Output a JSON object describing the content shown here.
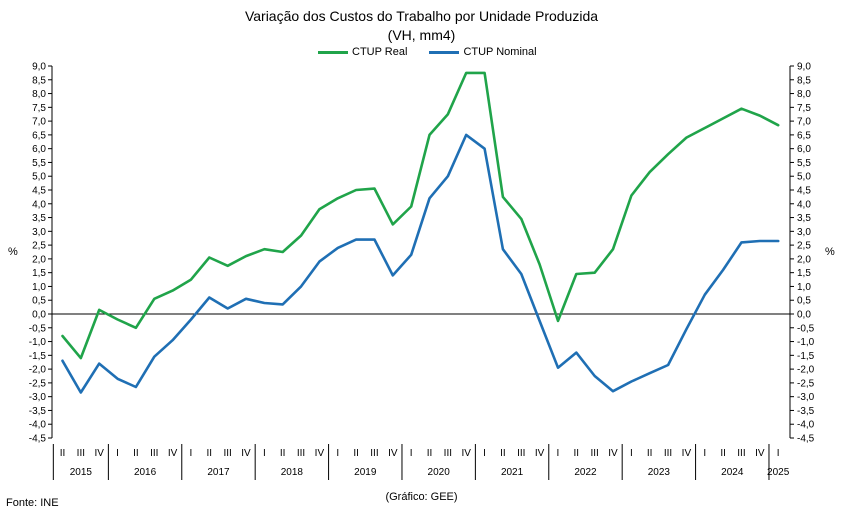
{
  "chart_data": {
    "type": "line",
    "title": "Variação dos Custos do Trabalho por Unidade Produzida",
    "subtitle": "(VH, mm4)",
    "ylabel": "%",
    "ylabel_right": "%",
    "ylim": [
      -4.5,
      9.0
    ],
    "ytick_step": 0.5,
    "yticks": [
      "-4,5",
      "-4,0",
      "-3,5",
      "-3,0",
      "-2,5",
      "-2,0",
      "-1,5",
      "-1,0",
      "-0,5",
      "0,0",
      "0,5",
      "1,0",
      "1,5",
      "2,0",
      "2,5",
      "3,0",
      "3,5",
      "4,0",
      "4,5",
      "5,0",
      "5,5",
      "6,0",
      "6,5",
      "7,0",
      "7,5",
      "8,0",
      "8,5",
      "9,0"
    ],
    "legend_position": "top-center",
    "grid": false,
    "quarters": [
      "II",
      "III",
      "IV",
      "I",
      "II",
      "III",
      "IV",
      "I",
      "II",
      "III",
      "IV",
      "I",
      "II",
      "III",
      "IV",
      "I",
      "II",
      "III",
      "IV",
      "I",
      "II",
      "III",
      "IV",
      "I",
      "II",
      "III",
      "IV",
      "I",
      "II",
      "III",
      "IV",
      "I",
      "II",
      "III",
      "IV",
      "I",
      "II",
      "III",
      "IV",
      "I"
    ],
    "years": [
      "2015",
      "2016",
      "2017",
      "2018",
      "2019",
      "2020",
      "2021",
      "2022",
      "2023",
      "2024",
      "2025"
    ],
    "year_quarter_counts": [
      3,
      4,
      4,
      4,
      4,
      4,
      4,
      4,
      4,
      4,
      1
    ],
    "series": [
      {
        "name": "CTUP Real",
        "color": "#20a44a",
        "values": [
          -0.8,
          -1.6,
          0.15,
          -0.2,
          -0.5,
          0.55,
          0.85,
          1.25,
          2.05,
          1.75,
          2.1,
          2.35,
          2.25,
          2.85,
          3.8,
          4.2,
          4.5,
          4.55,
          3.25,
          3.9,
          6.5,
          7.25,
          8.75,
          8.75,
          4.25,
          3.45,
          1.8,
          -0.25,
          1.45,
          1.5,
          2.35,
          4.3,
          5.15,
          5.8,
          6.4,
          6.75,
          7.1,
          7.45,
          7.2,
          6.85
        ]
      },
      {
        "name": "CTUP Nominal",
        "color": "#1f6fb4",
        "values": [
          -1.7,
          -2.85,
          -1.8,
          -2.35,
          -2.65,
          -1.55,
          -0.95,
          -0.2,
          0.6,
          0.2,
          0.55,
          0.4,
          0.35,
          1.0,
          1.9,
          2.4,
          2.7,
          2.7,
          1.4,
          2.15,
          4.2,
          5.0,
          6.5,
          6.0,
          2.35,
          1.45,
          -0.25,
          -1.95,
          -1.4,
          -2.25,
          -2.8,
          -2.45,
          -2.15,
          -1.85,
          -0.55,
          0.7,
          1.6,
          2.6,
          2.65,
          2.65
        ]
      }
    ]
  },
  "source_label": "Fonte: INE",
  "credit_label": "(Gráfico: GEE)"
}
